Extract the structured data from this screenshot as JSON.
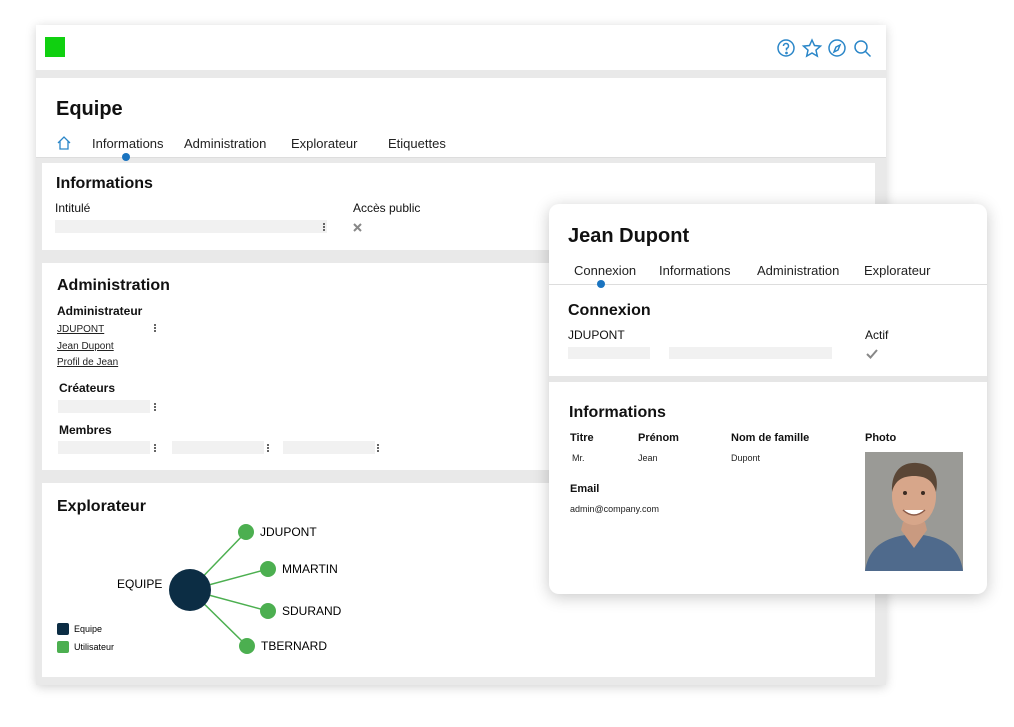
{
  "window": {
    "title": "Equipe",
    "tabs": [
      "Informations",
      "Administration",
      "Explorateur",
      "Etiquettes"
    ],
    "informations": {
      "title": "Informations",
      "fields": [
        "Intitulé",
        "Accès public"
      ]
    },
    "administration": {
      "title": "Administration",
      "administrateur": {
        "label": "Administrateur",
        "links": [
          "JDUPONT",
          "Jean Dupont",
          "Profil de Jean"
        ]
      },
      "createurs": "Créateurs",
      "membres": "Membres"
    },
    "explorateur": {
      "title": "Explorateur",
      "center": "EQUIPE",
      "nodes": [
        "JDUPONT",
        "MMARTIN",
        "SDURAND",
        "TBERNARD"
      ],
      "legend": [
        "Equipe",
        "Utilisateur"
      ]
    }
  },
  "card": {
    "title": "Jean Dupont",
    "tabs": [
      "Connexion",
      "Informations",
      "Administration",
      "Explorateur"
    ],
    "connexion": {
      "title": "Connexion",
      "login": "JDUPONT",
      "actif": "Actif"
    },
    "informations": {
      "title": "Informations",
      "headers": [
        "Titre",
        "Prénom",
        "Nom de famille",
        "Photo"
      ],
      "values": [
        "Mr.",
        "Jean",
        "Dupont"
      ],
      "email_label": "Email",
      "email": "admin@company.com"
    }
  }
}
